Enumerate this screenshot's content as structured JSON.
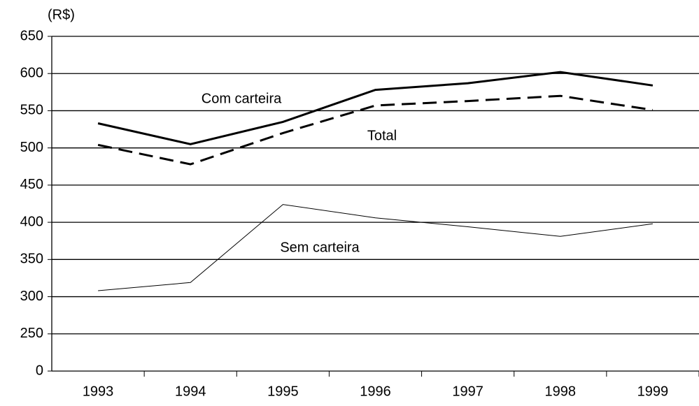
{
  "chart_data": {
    "type": "line",
    "y_unit_label": "(R$)",
    "categories": [
      "1993",
      "1994",
      "1995",
      "1996",
      "1997",
      "1998",
      "1999"
    ],
    "series": [
      {
        "name": "Com carteira",
        "color": "#000000",
        "line_width": 3,
        "dashed": false,
        "values": [
          533,
          505,
          535,
          578,
          587,
          602,
          584
        ]
      },
      {
        "name": "Total",
        "color": "#000000",
        "line_width": 3,
        "dashed": true,
        "values": [
          504,
          478,
          520,
          557,
          563,
          570,
          551
        ]
      },
      {
        "name": "Sem carteira",
        "color": "#000000",
        "line_width": 1,
        "dashed": false,
        "values": [
          308,
          319,
          424,
          406,
          394,
          381,
          398
        ]
      }
    ],
    "ylim": [
      0,
      650
    ],
    "y_break": [
      0,
      250
    ],
    "yticks": [
      0,
      250,
      300,
      350,
      400,
      450,
      500,
      550,
      600,
      650
    ],
    "grid": true
  }
}
